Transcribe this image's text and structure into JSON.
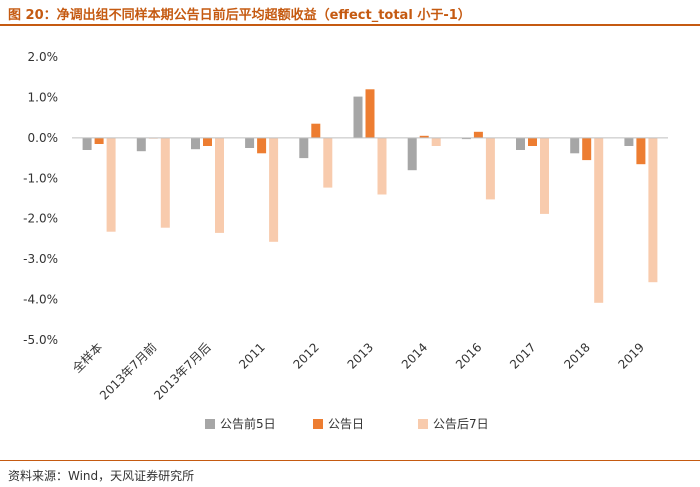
{
  "header": {
    "title": "图 20：净调出组不同样本期公告日前后平均超额收益（effect_total 小于-1）"
  },
  "footer": {
    "source": "资料来源：Wind，天风证券研究所"
  },
  "colors": {
    "accent": "#c55a11",
    "series": [
      "#a6a6a6",
      "#ed7d31",
      "#f8cbad"
    ]
  },
  "chart_data": {
    "type": "bar",
    "title": "图 20：净调出组不同样本期公告日前后平均超额收益（effect_total 小于-1）",
    "xlabel": "",
    "ylabel": "",
    "ylim": [
      -5.0,
      2.0
    ],
    "yticks": [
      2.0,
      1.0,
      0.0,
      -1.0,
      -2.0,
      -3.0,
      -4.0,
      -5.0
    ],
    "ytick_labels": [
      "2.0%",
      "1.0%",
      "0.0%",
      "-1.0%",
      "-2.0%",
      "-3.0%",
      "-4.0%",
      "-5.0%"
    ],
    "unit": "%",
    "grid": false,
    "legend_position": "bottom",
    "categories": [
      "全样本",
      "2013年7月前",
      "2013年7月后",
      "2011",
      "2012",
      "2013",
      "2014",
      "2016",
      "2017",
      "2018",
      "2019"
    ],
    "series": [
      {
        "name": "公告前5日",
        "values": [
          -0.3,
          -0.33,
          -0.28,
          -0.25,
          -0.5,
          1.02,
          -0.8,
          -0.03,
          -0.3,
          -0.38,
          -0.2
        ]
      },
      {
        "name": "公告日",
        "values": [
          -0.15,
          0.0,
          -0.2,
          -0.38,
          0.35,
          1.2,
          0.05,
          0.15,
          -0.2,
          -0.55,
          -0.65
        ]
      },
      {
        "name": "公告后7日",
        "values": [
          -2.32,
          -2.22,
          -2.35,
          -2.57,
          -1.23,
          -1.4,
          -0.2,
          -1.52,
          -1.88,
          -4.08,
          -3.57
        ]
      }
    ]
  }
}
